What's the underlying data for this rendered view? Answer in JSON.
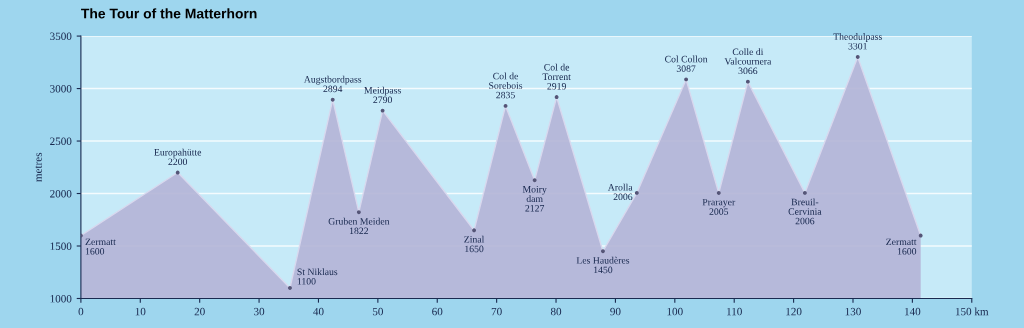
{
  "chart_data": {
    "type": "area",
    "title": "The Tour of the Matterhorn",
    "xlabel": null,
    "ylabel": "metres",
    "x": [
      0,
      16.3,
      35.2,
      42.4,
      46.8,
      50.8,
      66.2,
      71.5,
      76.4,
      80.1,
      87.9,
      93.6,
      101.9,
      107.4,
      112.3,
      121.9,
      130.8,
      141.4
    ],
    "series": [
      {
        "color": "#b4b4d6",
        "values": [
          1600,
          2200,
          1100,
          2894,
          1822,
          2790,
          1650,
          2835,
          2127,
          2919,
          1450,
          2006,
          3087,
          2005,
          3066,
          2006,
          3301,
          1600
        ]
      }
    ],
    "annotations": [
      {
        "text": "Zermatt\n1600",
        "x": 0,
        "y": 1600
      },
      {
        "text": "Europahütte\n2200",
        "x": 16.3,
        "y": 2200
      },
      {
        "text": "St Niklaus\n1100",
        "x": 35.2,
        "y": 1100
      },
      {
        "text": "Augstbordpass\n2894",
        "x": 42.4,
        "y": 2894
      },
      {
        "text": "Gruben Meiden\n1822",
        "x": 46.8,
        "y": 1822
      },
      {
        "text": "Meidpass\n2790",
        "x": 50.8,
        "y": 2790
      },
      {
        "text": "Zinal\n1650",
        "x": 66.2,
        "y": 1650
      },
      {
        "text": "Col de\nSorebois\n2835",
        "x": 71.5,
        "y": 2835
      },
      {
        "text": "Moiry\ndam\n2127",
        "x": 76.4,
        "y": 2127
      },
      {
        "text": "Col de\nTorrent\n2919",
        "x": 80.1,
        "y": 2919
      },
      {
        "text": "Les Haudères\n1450",
        "x": 87.9,
        "y": 1450
      },
      {
        "text": "Arolla\n2006",
        "x": 93.6,
        "y": 2006
      },
      {
        "text": "Col Collon\n3087",
        "x": 101.9,
        "y": 3087
      },
      {
        "text": "Prarayer\n2005",
        "x": 107.4,
        "y": 2005
      },
      {
        "text": "Colle di\nValcournera\n3066",
        "x": 112.3,
        "y": 3066
      },
      {
        "text": "Breuil-\nCervinia\n2006",
        "x": 121.9,
        "y": 2006
      },
      {
        "text": "Theodulpass\n3301",
        "x": 130.8,
        "y": 3301
      },
      {
        "text": "Zermatt\n1600",
        "x": 141.4,
        "y": 1600
      }
    ],
    "xlim": [
      0,
      150
    ],
    "ylim": [
      1000,
      3500
    ],
    "xticks": [
      0,
      10,
      20,
      30,
      40,
      50,
      60,
      70,
      80,
      90,
      100,
      110,
      120,
      130,
      140,
      {
        "value": 150,
        "label": "150 km"
      }
    ],
    "yticks": [
      1000,
      1500,
      2000,
      2500,
      3000,
      3500
    ],
    "grid": "y",
    "marker": "circle"
  }
}
